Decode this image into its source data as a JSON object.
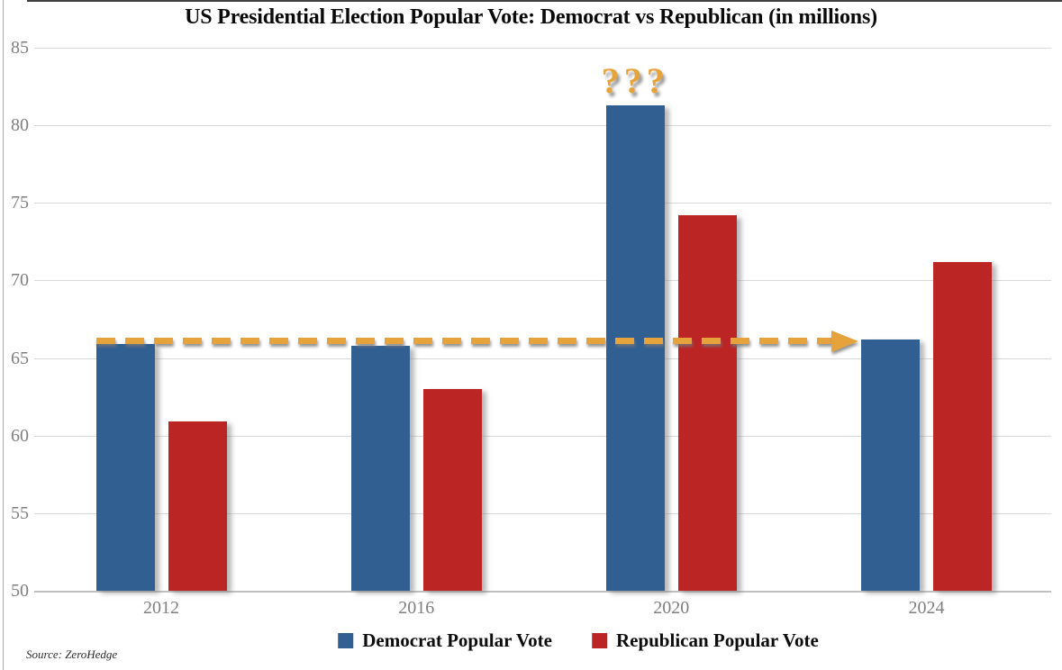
{
  "title": "US Presidential Election Popular Vote: Democrat vs Republican (in millions)",
  "source_note": "Source: ZeroHedge",
  "colors": {
    "democrat": "#315F92",
    "republican": "#BB2524",
    "accent_gold": "#E7A33B",
    "gridline": "#D9D9D9",
    "axis_line": "#BFBFBF",
    "tick_label": "#7F7F7F"
  },
  "legend": {
    "items": [
      {
        "label": "Democrat Popular Vote",
        "color": "#315F92"
      },
      {
        "label": "Republican Popular Vote",
        "color": "#BB2524"
      }
    ]
  },
  "chart_data": {
    "type": "bar",
    "title": "US Presidential Election Popular Vote: Democrat vs Republican (in millions)",
    "categories": [
      "2012",
      "2016",
      "2020",
      "2024"
    ],
    "series": [
      {
        "name": "Democrat Popular Vote",
        "color": "#315F92",
        "values": [
          65.9,
          65.8,
          81.3,
          66.2
        ]
      },
      {
        "name": "Republican Popular Vote",
        "color": "#BB2524",
        "values": [
          60.9,
          63.0,
          74.2,
          71.2
        ]
      }
    ],
    "xlabel": "",
    "ylabel": "",
    "ylim": [
      50,
      85
    ],
    "yticks": [
      50,
      55,
      60,
      65,
      70,
      75,
      80,
      85
    ],
    "grid": true,
    "legend_position": "bottom",
    "annotations": [
      {
        "type": "text",
        "text": "???",
        "category": "2020",
        "series": "Democrat Popular Vote",
        "color": "#E7A33B"
      },
      {
        "type": "dashed-arrow",
        "y": 66.1,
        "from_category": "2012",
        "to_category": "2024",
        "color": "#E7A33B"
      }
    ]
  }
}
